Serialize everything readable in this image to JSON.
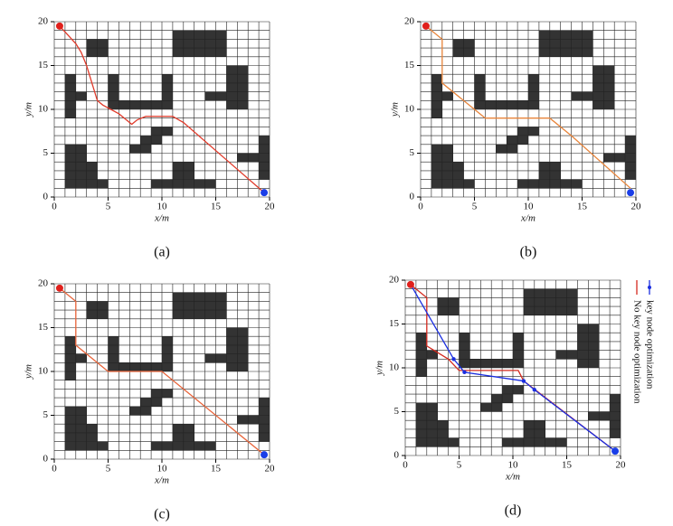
{
  "chart_data": [
    {
      "type": "line",
      "caption": "(a)",
      "xlabel": "x/m",
      "ylabel": "y/m",
      "xlim": [
        0,
        20
      ],
      "ylim": [
        0,
        20
      ],
      "xticks": [
        0,
        5,
        10,
        15,
        20
      ],
      "yticks": [
        0,
        5,
        10,
        15,
        20
      ],
      "obstacles": [
        [
          11,
          16,
          5,
          3
        ],
        [
          3,
          16,
          2,
          2
        ],
        [
          1,
          9,
          1,
          5
        ],
        [
          2,
          11,
          1,
          1
        ],
        [
          5,
          10,
          1,
          4
        ],
        [
          6,
          10,
          5,
          1
        ],
        [
          10,
          11,
          1,
          3
        ],
        [
          16,
          10,
          2,
          5
        ],
        [
          14,
          11,
          2,
          1
        ],
        [
          7,
          5,
          2,
          1
        ],
        [
          8,
          6,
          2,
          1
        ],
        [
          9,
          7,
          2,
          1
        ],
        [
          1,
          1,
          4,
          1
        ],
        [
          1,
          2,
          3,
          2
        ],
        [
          1,
          4,
          2,
          2
        ],
        [
          9,
          1,
          6,
          1
        ],
        [
          11,
          2,
          2,
          2
        ],
        [
          19,
          2,
          1,
          5
        ],
        [
          17,
          4,
          2,
          1
        ]
      ],
      "obstacle_color": "#333333",
      "start": [
        0.5,
        19.5
      ],
      "goal": [
        19.5,
        0.5
      ],
      "start_color": "#e0201c",
      "goal_color": "#1a3ee8",
      "series": [
        {
          "color": "#e03a2a",
          "x": [
            0.5,
            2,
            2.5,
            3,
            3.5,
            4,
            4.5,
            6,
            7.2,
            7.7,
            8.5,
            11,
            12,
            19.5
          ],
          "y": [
            19.5,
            17.5,
            16.5,
            15,
            13,
            11,
            10.5,
            9.5,
            8.3,
            8.8,
            9.2,
            9.2,
            8.5,
            0.5
          ]
        }
      ]
    },
    {
      "type": "line",
      "caption": "(b)",
      "xlabel": "x/m",
      "ylabel": "y/m",
      "xlim": [
        0,
        20
      ],
      "ylim": [
        0,
        20
      ],
      "xticks": [
        0,
        5,
        10,
        15,
        20
      ],
      "yticks": [
        0,
        5,
        10,
        15,
        20
      ],
      "obstacles": [
        [
          11,
          16,
          5,
          3
        ],
        [
          3,
          16,
          2,
          2
        ],
        [
          1,
          9,
          1,
          5
        ],
        [
          2,
          11,
          1,
          1
        ],
        [
          5,
          10,
          1,
          4
        ],
        [
          6,
          10,
          5,
          1
        ],
        [
          10,
          11,
          1,
          3
        ],
        [
          16,
          10,
          2,
          5
        ],
        [
          14,
          11,
          2,
          1
        ],
        [
          7,
          5,
          2,
          1
        ],
        [
          8,
          6,
          2,
          1
        ],
        [
          9,
          7,
          2,
          1
        ],
        [
          1,
          1,
          4,
          1
        ],
        [
          1,
          2,
          3,
          2
        ],
        [
          1,
          4,
          2,
          2
        ],
        [
          9,
          1,
          6,
          1
        ],
        [
          11,
          2,
          2,
          2
        ],
        [
          19,
          2,
          1,
          5
        ],
        [
          17,
          4,
          2,
          1
        ]
      ],
      "obstacle_color": "#333333",
      "start": [
        0.5,
        19.5
      ],
      "goal": [
        19.5,
        0.5
      ],
      "start_color": "#e0201c",
      "goal_color": "#1a3ee8",
      "series": [
        {
          "color": "#e8843a",
          "x": [
            0.5,
            2,
            2,
            6,
            12,
            14,
            19.5
          ],
          "y": [
            19.5,
            18,
            13,
            9,
            9,
            7,
            1
          ]
        }
      ]
    },
    {
      "type": "line",
      "caption": "(c)",
      "xlabel": "x/m",
      "ylabel": "y/m",
      "xlim": [
        0,
        20
      ],
      "ylim": [
        0,
        20
      ],
      "xticks": [
        0,
        5,
        10,
        15,
        20
      ],
      "yticks": [
        0,
        5,
        10,
        15,
        20
      ],
      "obstacles": [
        [
          11,
          16,
          5,
          3
        ],
        [
          3,
          16,
          2,
          2
        ],
        [
          1,
          9,
          1,
          5
        ],
        [
          2,
          11,
          1,
          1
        ],
        [
          5,
          10,
          1,
          4
        ],
        [
          6,
          10,
          5,
          1
        ],
        [
          10,
          11,
          1,
          3
        ],
        [
          16,
          10,
          2,
          5
        ],
        [
          14,
          11,
          2,
          1
        ],
        [
          7,
          5,
          2,
          1
        ],
        [
          8,
          6,
          2,
          1
        ],
        [
          9,
          7,
          2,
          1
        ],
        [
          1,
          1,
          4,
          1
        ],
        [
          1,
          2,
          3,
          2
        ],
        [
          1,
          4,
          2,
          2
        ],
        [
          9,
          1,
          6,
          1
        ],
        [
          11,
          2,
          2,
          2
        ],
        [
          19,
          2,
          1,
          5
        ],
        [
          17,
          4,
          2,
          1
        ]
      ],
      "obstacle_color": "#333333",
      "start": [
        0.5,
        19.5
      ],
      "goal": [
        19.5,
        0.5
      ],
      "start_color": "#e0201c",
      "goal_color": "#1a3ee8",
      "series": [
        {
          "color": "#e8643a",
          "x": [
            0.5,
            2,
            2,
            5,
            10,
            19.5
          ],
          "y": [
            19.5,
            18,
            13,
            10,
            10,
            0.5
          ]
        }
      ]
    },
    {
      "type": "line",
      "caption": "(d)",
      "xlabel": "x/m",
      "ylabel": "y/m",
      "xlim": [
        0,
        20
      ],
      "ylim": [
        0,
        20
      ],
      "xticks": [
        0,
        5,
        10,
        15,
        20
      ],
      "yticks": [
        0,
        5,
        10,
        15,
        20
      ],
      "obstacles": [
        [
          11,
          16,
          5,
          3
        ],
        [
          3,
          16,
          2,
          2
        ],
        [
          1,
          9,
          1,
          5
        ],
        [
          2,
          11,
          1,
          1
        ],
        [
          5,
          10,
          1,
          4
        ],
        [
          6,
          10,
          5,
          1
        ],
        [
          10,
          11,
          1,
          3
        ],
        [
          16,
          10,
          2,
          5
        ],
        [
          14,
          11,
          2,
          1
        ],
        [
          7,
          5,
          2,
          1
        ],
        [
          8,
          6,
          2,
          1
        ],
        [
          9,
          7,
          2,
          1
        ],
        [
          1,
          1,
          4,
          1
        ],
        [
          1,
          2,
          3,
          2
        ],
        [
          1,
          4,
          2,
          2
        ],
        [
          9,
          1,
          6,
          1
        ],
        [
          11,
          2,
          2,
          2
        ],
        [
          19,
          2,
          1,
          5
        ],
        [
          17,
          4,
          2,
          1
        ]
      ],
      "obstacle_color": "#333333",
      "start": [
        0.5,
        19.5
      ],
      "goal": [
        19.5,
        0.5
      ],
      "start_color": "#e0201c",
      "goal_color": "#1a3ee8",
      "series": [
        {
          "name": "No key node optimization",
          "color": "#d42a1e",
          "x": [
            0.5,
            2,
            2,
            4,
            5,
            10.5,
            11,
            19.5
          ],
          "y": [
            19.5,
            18,
            12.5,
            11,
            9.7,
            9.7,
            8.5,
            0.5
          ]
        },
        {
          "name": "key node optimization",
          "color": "#1a2ee0",
          "markers": true,
          "x": [
            0.5,
            4.5,
            5.5,
            11,
            12,
            19.5
          ],
          "y": [
            19.5,
            11,
            9.5,
            8.5,
            7.5,
            0.5
          ]
        }
      ]
    }
  ]
}
